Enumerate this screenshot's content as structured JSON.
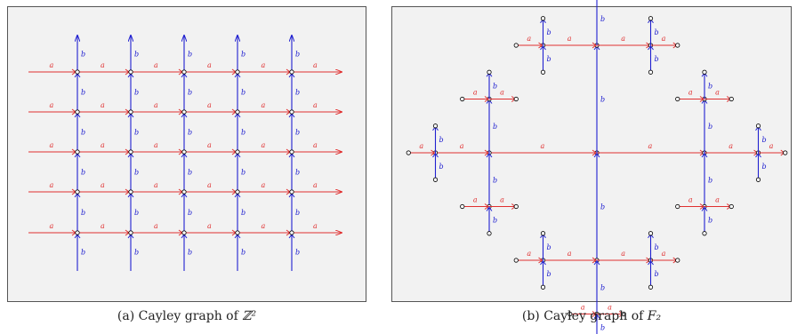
{
  "diagrams": {
    "a": {
      "generator_a": "a",
      "generator_b": "b",
      "caption_prefix": "(a) Cayley graph of ",
      "caption_math": "ℤ²"
    },
    "b": {
      "generator_a": "a",
      "generator_b": "b",
      "caption_prefix": "(b) Cayley graph of ",
      "caption_math": "F₂"
    }
  },
  "colors": {
    "a_edge": "#e03030",
    "b_edge": "#2020d0",
    "panel_bg": "#f2f2f2"
  }
}
